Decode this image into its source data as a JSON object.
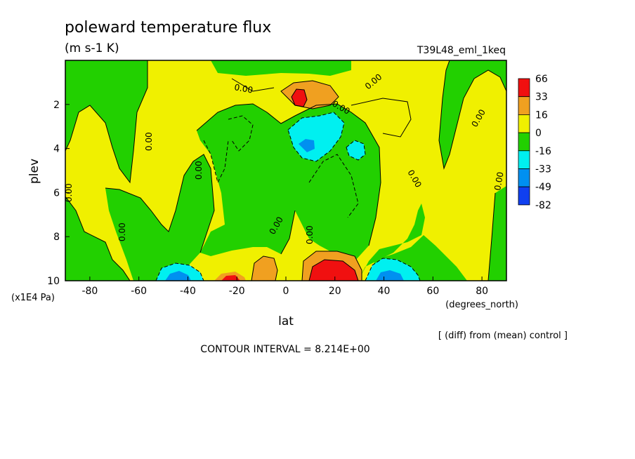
{
  "chart_data": {
    "type": "heatmap",
    "title": "poleward temperature flux",
    "units": "(m s-1 K)",
    "run_label": "T39L48_eml_1keq",
    "xlabel": "lat",
    "x_units": "(degrees_north)",
    "ylabel": "plev",
    "y_units": "(x1E4 Pa)",
    "xlim": [
      -90,
      90
    ],
    "ylim": [
      10,
      0
    ],
    "x_ticks": [
      "-80",
      "-60",
      "-40",
      "-20",
      "0",
      "20",
      "40",
      "60",
      "80"
    ],
    "y_ticks": [
      "2",
      "4",
      "6",
      "8",
      "10"
    ],
    "colorbar": {
      "labels": [
        "66",
        "33",
        "16",
        "0",
        "-16",
        "-33",
        "-49",
        "-82"
      ],
      "colors": [
        "#f01010",
        "#f0a020",
        "#f0f000",
        "#22d000",
        "#00f0f0",
        "#0090f0",
        "#1040f0"
      ]
    },
    "contour_labels": [
      "0.00"
    ],
    "contour_interval_text": "CONTOUR INTERVAL = 8.214E+00",
    "footnote": "[ (diff) from (mean) control ]"
  }
}
